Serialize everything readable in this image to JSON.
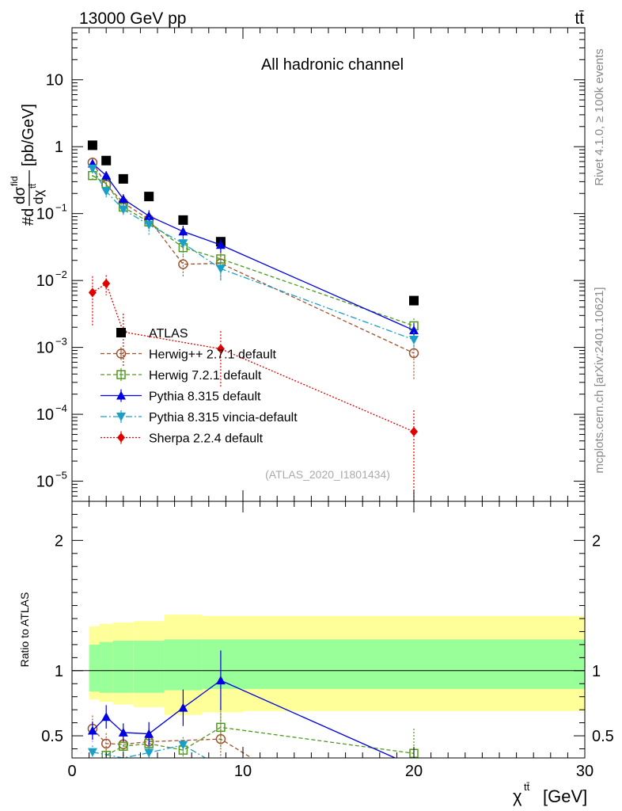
{
  "header": {
    "energy_label": "13000 GeV pp",
    "process_label": "tt̄",
    "side_rivet": "Rivet 4.1.0, ≥ 100k events",
    "side_mcplots": "mcplots.cern.ch [arXiv:2401.10621]"
  },
  "chart_data": [
    {
      "type": "line",
      "panel": "main",
      "title": "All hadronic channel",
      "analysis_id": "(ATLAS_2020_I1801434)",
      "xlabel": "χ^tt̄ [GeV]",
      "ylabel": "#d dσ^fid / dχ^tt̄ [pb/GeV]",
      "yscale": "log",
      "xlim": [
        0,
        30
      ],
      "ylim": [
        5e-06,
        60
      ],
      "y_ticks": [
        {
          "value": 1e-05,
          "label": "10",
          "exp": "−5"
        },
        {
          "value": 0.0001,
          "label": "10",
          "exp": "−4"
        },
        {
          "value": 0.001,
          "label": "10",
          "exp": "−3"
        },
        {
          "value": 0.01,
          "label": "10",
          "exp": "−2"
        },
        {
          "value": 0.1,
          "label": "10",
          "exp": "−1"
        },
        {
          "value": 1,
          "label": "1",
          "exp": ""
        },
        {
          "value": 10,
          "label": "10",
          "exp": ""
        }
      ],
      "series": [
        {
          "name": "ATLAS",
          "color": "#000000",
          "marker": "square-filled",
          "dash": "none",
          "x": [
            1.2,
            2.0,
            3.0,
            4.5,
            6.5,
            8.7,
            20.0
          ],
          "y": [
            1.05,
            0.62,
            0.33,
            0.18,
            0.08,
            0.038,
            0.005
          ],
          "err": [
            0,
            0,
            0,
            0,
            0,
            0,
            0
          ]
        },
        {
          "name": "Herwig++ 2.7.1 default",
          "color": "#a0522d",
          "marker": "circle-open",
          "dash": "5,3",
          "x": [
            1.2,
            2.0,
            3.0,
            4.5,
            6.5,
            8.7,
            20.0
          ],
          "y": [
            0.58,
            0.27,
            0.145,
            0.082,
            0.0175,
            0.018,
            0.00082
          ],
          "err": [
            0.08,
            0.05,
            0.03,
            0.02,
            0.006,
            0.008,
            0.0005
          ]
        },
        {
          "name": "Herwig 7.2.1 default",
          "color": "#4d9a1a",
          "marker": "square-open",
          "dash": "5,3",
          "x": [
            1.2,
            2.0,
            3.0,
            4.5,
            6.5,
            8.7,
            20.0
          ],
          "y": [
            0.37,
            0.28,
            0.125,
            0.075,
            0.031,
            0.021,
            0.0021
          ],
          "err": [
            0.05,
            0.05,
            0.025,
            0.02,
            0.008,
            0.006,
            0.0006
          ]
        },
        {
          "name": "Pythia 8.315 default",
          "color": "#0000e0",
          "marker": "triangle-up",
          "dash": "none",
          "x": [
            1.2,
            2.0,
            3.0,
            4.5,
            6.5,
            8.7,
            20.0
          ],
          "y": [
            0.56,
            0.37,
            0.165,
            0.092,
            0.054,
            0.034,
            0.0018
          ],
          "err": [
            0.08,
            0.06,
            0.03,
            0.02,
            0.012,
            0.008,
            0.0005
          ]
        },
        {
          "name": "Pythia 8.315 vincia-default",
          "color": "#1aa0c8",
          "marker": "triangle-down",
          "dash": "8,3,2,3",
          "x": [
            1.2,
            2.0,
            3.0,
            4.5,
            6.5,
            8.7,
            20.0
          ],
          "y": [
            0.47,
            0.215,
            0.115,
            0.068,
            0.036,
            0.015,
            0.0013
          ],
          "err": [
            0.07,
            0.04,
            0.025,
            0.02,
            0.01,
            0.005,
            0.0004
          ]
        },
        {
          "name": "Sherpa 2.2.4 default",
          "color": "#e00000",
          "marker": "diamond",
          "dash": "2,2",
          "x": [
            1.2,
            2.0,
            3.0,
            8.7,
            20.0
          ],
          "y": [
            0.0066,
            0.009,
            0.0017,
            0.00095,
            5.5e-05
          ],
          "err_lo": [
            0.0045,
            0.003,
            0.0012,
            0.0007,
            5e-05
          ],
          "err_hi": [
            0.005,
            0.003,
            0.0015,
            0.0008,
            6e-05
          ]
        }
      ]
    },
    {
      "type": "line",
      "panel": "ratio",
      "ylabel": "Ratio to ATLAS",
      "xlabel": "χ^tt̄ [GeV]",
      "xlim": [
        0,
        30
      ],
      "ylim": [
        0.33,
        2.3
      ],
      "y_ticks": [
        0.5,
        1,
        2
      ],
      "x_ticks": [
        0,
        10,
        20,
        30
      ],
      "reference": 1,
      "bands": {
        "edges": [
          1.0,
          1.6,
          2.4,
          3.6,
          5.4,
          7.6,
          10.0,
          30.0
        ],
        "yellow_lo": [
          0.78,
          0.76,
          0.74,
          0.72,
          0.66,
          0.68,
          0.69
        ],
        "yellow_hi": [
          1.34,
          1.36,
          1.37,
          1.38,
          1.43,
          1.42,
          1.42
        ],
        "green_lo": [
          0.84,
          0.83,
          0.83,
          0.83,
          0.85,
          0.86,
          0.86
        ],
        "green_hi": [
          1.2,
          1.22,
          1.23,
          1.23,
          1.24,
          1.24,
          1.24
        ],
        "yellow_color": "#ffff99",
        "green_color": "#99ff99"
      },
      "series": [
        {
          "name": "Herwig++ 2.7.1 default",
          "color": "#a0522d",
          "marker": "circle-open",
          "dash": "5,3",
          "x": [
            1.2,
            2.0,
            3.0,
            4.5,
            8.7,
            10.5
          ],
          "y": [
            0.555,
            0.44,
            0.435,
            0.455,
            0.475,
            0.33
          ],
          "err": [
            0.1,
            0.08,
            0.07,
            0.1,
            0.2,
            0
          ]
        },
        {
          "name": "Herwig 7.2.1 default",
          "color": "#4d9a1a",
          "marker": "square-open",
          "dash": "5,3",
          "x": [
            2.0,
            3.0,
            4.5,
            6.5,
            8.7,
            20.0
          ],
          "y": [
            0.35,
            0.42,
            0.44,
            0.39,
            0.565,
            0.365
          ],
          "err": [
            0.05,
            0.06,
            0.08,
            0.06,
            0.15,
            0.19
          ]
        },
        {
          "name": "Pythia 8.315 default",
          "color": "#0000e0",
          "marker": "triangle-up",
          "dash": "none",
          "x": [
            1.2,
            2.0,
            3.0,
            4.5,
            6.5,
            8.7,
            18.9
          ],
          "y": [
            0.54,
            0.645,
            0.525,
            0.515,
            0.715,
            0.925,
            0.33
          ],
          "err": [
            0.07,
            0.09,
            0.07,
            0.09,
            0.14,
            0.23,
            0
          ]
        },
        {
          "name": "Pythia 8.315 vincia-default",
          "color": "#1aa0c8",
          "marker": "triangle-down",
          "dash": "8,3,2,3",
          "x": [
            1.2,
            3.0,
            4.5,
            6.5,
            7.8
          ],
          "y": [
            0.375,
            0.33,
            0.37,
            0.43,
            0.33
          ],
          "err": [
            0.05,
            0.05,
            0.05,
            0.06,
            0
          ]
        }
      ]
    }
  ]
}
